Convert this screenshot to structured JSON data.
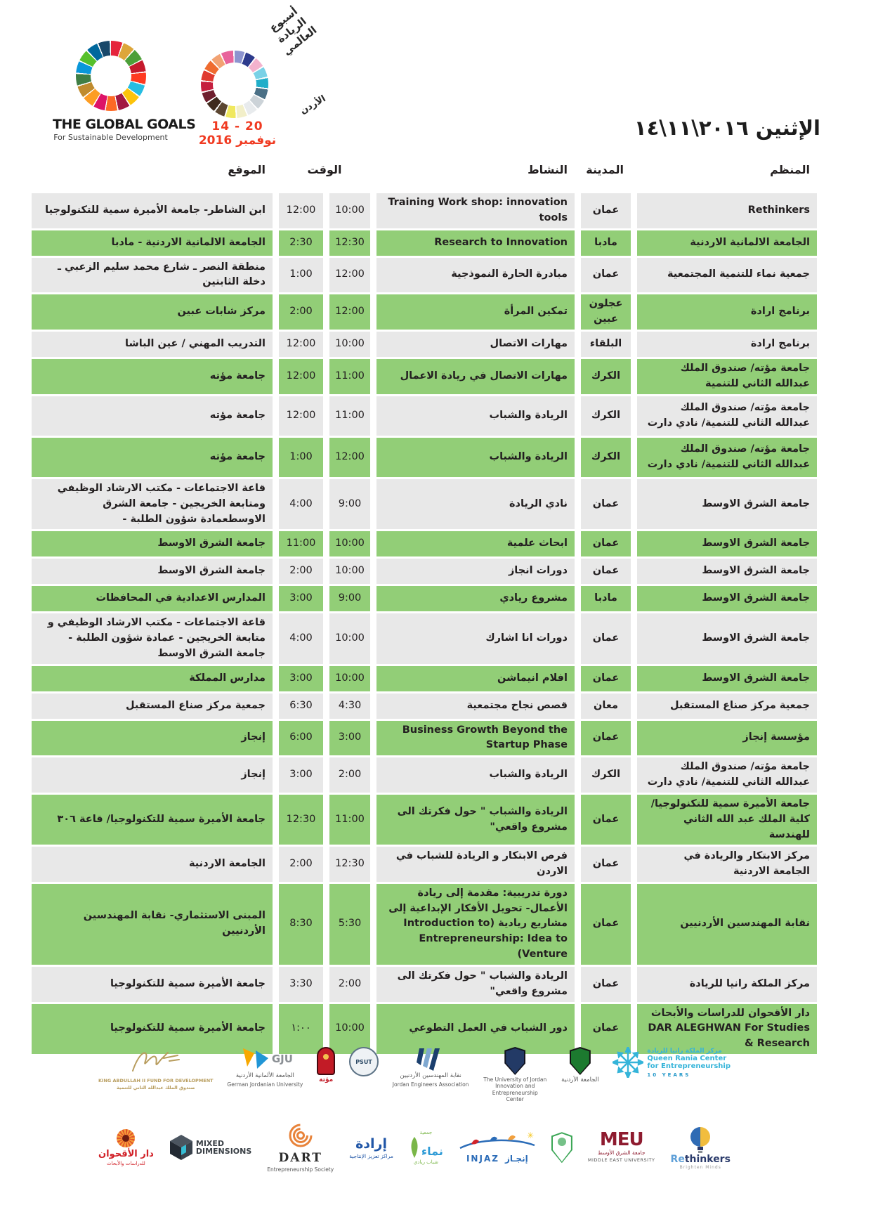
{
  "branding": {
    "global_goals": {
      "title": "THE GLOBAL GOALS",
      "subtitle": "For Sustainable Development"
    },
    "gew": {
      "script_l1": "أسبوع",
      "script_l2": "الريادة",
      "script_l3": "العالمي",
      "country": "الأردن",
      "date_range": "20 - 14",
      "date_month": "نوفمبر 2016",
      "accent_red": "#f03a21"
    },
    "day_word": "الإثنين",
    "day_numbers": "٢٠١٦\\١١\\١٤"
  },
  "table": {
    "columns": {
      "organizer": "المنظم",
      "city": "المدينة",
      "activity": "النشاط",
      "time": "الوقت",
      "location": "الموقع"
    },
    "colors": {
      "row_green": "#92ce77",
      "row_gray": "#e8e8e8"
    },
    "rows": [
      {
        "organizer": "Rethinkers",
        "city": "عمان",
        "activity": "Training Work shop: innovation tools",
        "time_start": "10:00",
        "time_end": "12:00",
        "location": "ابن الشاطر- جامعة الأميرة سمية للتكنولوجيا"
      },
      {
        "organizer": "الجامعة الالمانية الاردنية",
        "city": "مادبا",
        "activity": "Research to Innovation",
        "time_start": "12:30",
        "time_end": "2:30",
        "location": "الجامعة الالمانية الاردنية - مادبا"
      },
      {
        "organizer": "جمعية نماء للتنمية المجتمعية",
        "city": "عمان",
        "activity": "مبادرة الحارة النموذجية",
        "time_start": "12:00",
        "time_end": "1:00",
        "location": "منطقة النصر ـ شارع محمد سليم الزعبي ـ دخلة الثابتين"
      },
      {
        "organizer": "برنامج ارادة",
        "city": "عجلون عبين",
        "activity": "تمكين المرأة",
        "time_start": "12:00",
        "time_end": "2:00",
        "location": "مركز شابات عبين"
      },
      {
        "organizer": "برنامج ارادة",
        "city": "البلقاء",
        "activity": "مهارات الاتصال",
        "time_start": "10:00",
        "time_end": "12:00",
        "location": "التدريب المهني / عين الباشا"
      },
      {
        "organizer": "جامعة مؤته/ صندوق الملك عبدالله الثاني للتنمية",
        "city": "الكرك",
        "activity": "مهارات الاتصال في ريادة الاعمال",
        "time_start": "11:00",
        "time_end": "12:00",
        "location": "جامعة مؤته"
      },
      {
        "organizer": "جامعة مؤته/ صندوق الملك عبدالله الثاني للتنمية/ نادي دارت",
        "city": "الكرك",
        "activity": "الريادة والشباب",
        "time_start": "11:00",
        "time_end": "12:00",
        "location": "جامعة مؤته"
      },
      {
        "organizer": "جامعة مؤته/ صندوق الملك عبدالله الثاني للتنمية/ نادي دارت",
        "city": "الكرك",
        "activity": "الريادة والشباب",
        "time_start": "12:00",
        "time_end": "1:00",
        "location": "جامعة مؤته"
      },
      {
        "organizer": "جامعة الشرق الاوسط",
        "city": "عمان",
        "activity": "نادي الريادة",
        "time_start": "9:00",
        "time_end": "4:00",
        "location": "قاعة الاجتماعات - مكتب الارشاد الوظيفي ومتابعة الخريجين - جامعة الشرق الاوسطعمادة شؤون الطلبة -"
      },
      {
        "organizer": "جامعة الشرق الاوسط",
        "city": "عمان",
        "activity": "ابحاث علمية",
        "time_start": "10:00",
        "time_end": "11:00",
        "location": "جامعة الشرق الاوسط"
      },
      {
        "organizer": "جامعة الشرق الاوسط",
        "city": "عمان",
        "activity": "دورات انجاز",
        "time_start": "10:00",
        "time_end": "2:00",
        "location": "جامعة الشرق الاوسط"
      },
      {
        "organizer": "جامعة الشرق الاوسط",
        "city": "مادبا",
        "activity": "مشروع ريادي",
        "time_start": "9:00",
        "time_end": "3:00",
        "location": "المدارس الاعدادية في المحافظات"
      },
      {
        "organizer": "جامعة الشرق الاوسط",
        "city": "عمان",
        "activity": "دورات انا اشارك",
        "time_start": "10:00",
        "time_end": "4:00",
        "location": "قاعة الاجتماعات - مكتب الارشاد الوظيفي و متابعة الخريجين - عمادة شؤون الطلبة - جامعة الشرق الاوسط"
      },
      {
        "organizer": "جامعة الشرق الاوسط",
        "city": "عمان",
        "activity": "افلام انيماشن",
        "time_start": "10:00",
        "time_end": "3:00",
        "location": "مدارس المملكة"
      },
      {
        "organizer": "جمعية مركز صناع المستقبل",
        "city": "معان",
        "activity": "قصص نجاح مجتمعية",
        "time_start": "4:30",
        "time_end": "6:30",
        "location": "جمعية مركز صناع المستقبل"
      },
      {
        "organizer": "مؤسسة إنجاز",
        "city": "عمان",
        "activity": "Business Growth Beyond the Startup Phase",
        "time_start": "3:00",
        "time_end": "6:00",
        "location": "إنجاز"
      },
      {
        "organizer": "جامعة مؤته/ صندوق الملك عبدالله الثاني للتنمية/ نادي دارت",
        "city": "الكرك",
        "activity": "الريادة والشباب",
        "time_start": "2:00",
        "time_end": "3:00",
        "location": "إنجاز"
      },
      {
        "organizer": "جامعة الأميرة سمية للتكنولوجيا/ كلية الملك عبد الله الثاني للهندسة",
        "city": "عمان",
        "activity": "الريادة والشباب \" حول فكرتك الى مشروع واقعي\"",
        "time_start": "11:00",
        "time_end": "12:30",
        "location": "جامعة الأميرة سمية للتكنولوجيا/ قاعة ٣٠٦"
      },
      {
        "organizer": "مركز الابتكار والريادة في الجامعة الاردنية",
        "city": "عمان",
        "activity": "فرص الابتكار و الريادة للشباب في الاردن",
        "time_start": "12:30",
        "time_end": "2:00",
        "location": "الجامعة الاردنية"
      },
      {
        "organizer": "نقابة المهندسين الأردنيين",
        "city": "عمان",
        "activity": "دورة تدريبية: مقدمة إلى ريادة الأعمال- تحويل الأفكار الإبداعية إلى مشاريع ريادية (Introduction to Entrepreneurship: Idea to Venture)",
        "time_start": "5:30",
        "time_end": "8:30",
        "location": "المبنى الاستثماري- نقابة المهندسين الأردنيين"
      },
      {
        "organizer": "مركز الملكة رانيا للريادة",
        "city": "عمان",
        "activity": "الريادة والشباب \" حول فكرتك الى مشروع واقعي\"",
        "time_start": "2:00",
        "time_end": "3:30",
        "location": "جامعة الأميرة سمية للتكنولوجيا"
      },
      {
        "organizer": "دار الأقحوان للدراسات والأبحاث DAR ALEGHWAN For Studies & Research",
        "city": "عمان",
        "activity": "دور الشباب في العمل التطوعي",
        "time_start": "10:00",
        "time_end": "١:٠٠",
        "location": "جامعة الأميرة سمية للتكنولوجيا"
      }
    ]
  },
  "footer": {
    "kafd": {
      "en": "KING ABDULLAH II FUND FOR DEVELOPMENT",
      "ar": "صندوق الملك عبدالله الثاني للتنمية"
    },
    "gju": {
      "abbr": "GJU",
      "ar": "الجامعة الألمانية الأردنية",
      "en": "German Jordanian University"
    },
    "mutah": {
      "ar": "مؤتة"
    },
    "psut": {
      "abbr": "PSUT"
    },
    "jea": {
      "ar": "نقابة المهندسين الأردنيين",
      "en": "Jordan Engineers Association"
    },
    "ujiec": {
      "en": "The University of Jordan Innovation and Entrepreneurship Center"
    },
    "uj": {
      "ar": "الجامعة الأردنية"
    },
    "qrce": {
      "ar": "مركز الملكة رانيا للريادة",
      "en1": "Queen Rania Center",
      "en2": "for Entrepreneurship",
      "years": "10 YEARS"
    },
    "aqhwan": {
      "ar": "دار الأقحوان",
      "sub": "للدراسات والأبحاث"
    },
    "mixed": {
      "l1": "MIXED",
      "l2": "DIMENSIONS"
    },
    "dart": {
      "name": "DART",
      "sub": "Entrepreneurship Society"
    },
    "irada": {
      "ar": "إرادة",
      "sub": "مراكز تعزيز الإنتاجية"
    },
    "namaa": {
      "top": "جمعية",
      "ar": "نماء",
      "sub": "شباب ريادي"
    },
    "injaz": {
      "en": "INJAZ",
      "ar": "إنجـاز"
    },
    "meu": {
      "abbr": "MEU",
      "en": "MIDDLE EAST UNIVERSITY",
      "ar": "جامعة الشرق الأوسط"
    },
    "rethinkers": {
      "re": "Re",
      "rest": "thinkers",
      "sub": "Brighten Minds"
    }
  }
}
